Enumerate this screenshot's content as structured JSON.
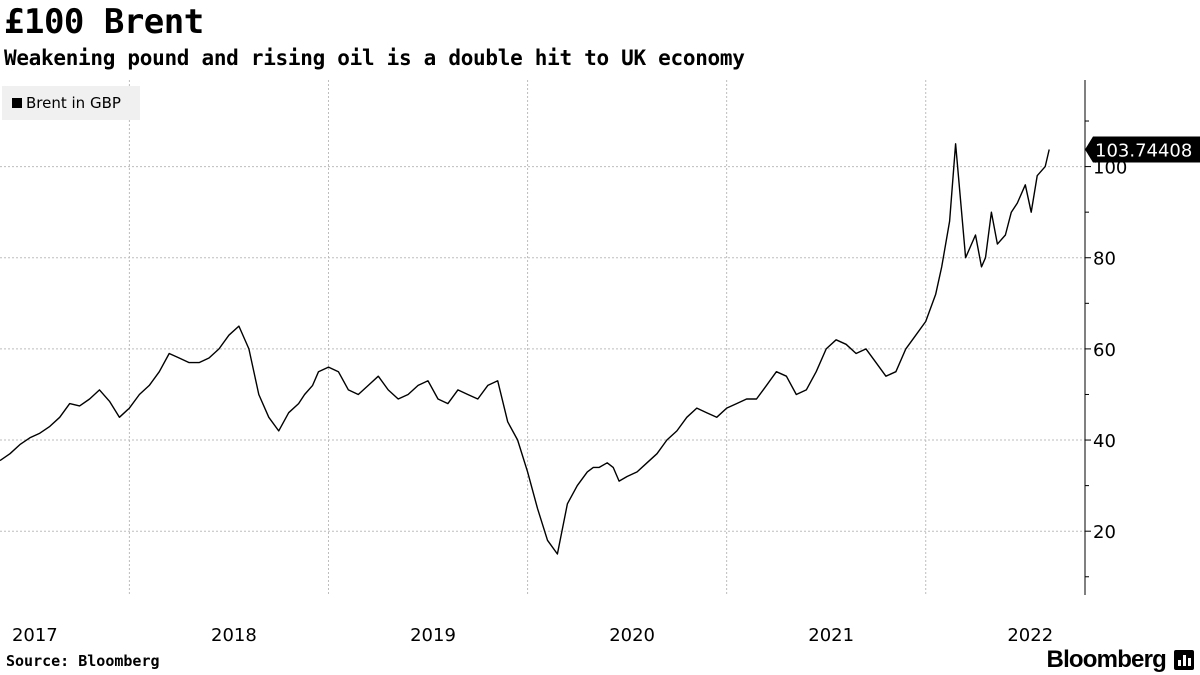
{
  "title": "£100 Brent",
  "subtitle": "Weakening pound and rising oil is a double hit to UK economy",
  "source": "Source: Bloomberg",
  "brand": "Bloomberg",
  "colors": {
    "line": "#000000",
    "grid": "#bdbdbd",
    "legend_bg": "#f0f0f0",
    "badge": "#000000"
  },
  "chart_data": {
    "type": "line",
    "title": "£100 Brent",
    "xlabel": "",
    "ylabel": "",
    "ylim": [
      6,
      119
    ],
    "xlim": [
      2016.85,
      2022.3
    ],
    "grid": true,
    "legend_position": "top-left",
    "y_ticks": [
      20,
      40,
      60,
      80,
      100
    ],
    "x_ticks": [
      {
        "label": "2017",
        "value": 2017.0
      },
      {
        "label": "2018",
        "value": 2018.0
      },
      {
        "label": "2019",
        "value": 2019.0
      },
      {
        "label": "2020",
        "value": 2020.0
      },
      {
        "label": "2021",
        "value": 2021.0
      },
      {
        "label": "2022",
        "value": 2022.0
      }
    ],
    "last_value_label": "103.74408",
    "series": [
      {
        "name": "Brent in GBP",
        "x": [
          2016.85,
          2016.9,
          2016.95,
          2017.0,
          2017.05,
          2017.1,
          2017.15,
          2017.2,
          2017.25,
          2017.3,
          2017.35,
          2017.4,
          2017.45,
          2017.5,
          2017.55,
          2017.6,
          2017.65,
          2017.7,
          2017.75,
          2017.8,
          2017.85,
          2017.9,
          2017.95,
          2018.0,
          2018.05,
          2018.1,
          2018.15,
          2018.2,
          2018.25,
          2018.3,
          2018.35,
          2018.38,
          2018.42,
          2018.45,
          2018.5,
          2018.55,
          2018.6,
          2018.65,
          2018.7,
          2018.75,
          2018.8,
          2018.85,
          2018.9,
          2018.95,
          2019.0,
          2019.05,
          2019.1,
          2019.15,
          2019.2,
          2019.25,
          2019.3,
          2019.35,
          2019.4,
          2019.45,
          2019.5,
          2019.55,
          2019.6,
          2019.65,
          2019.7,
          2019.75,
          2019.8,
          2019.83,
          2019.86,
          2019.9,
          2019.93,
          2019.96,
          2020.0,
          2020.05,
          2020.1,
          2020.15,
          2020.2,
          2020.25,
          2020.3,
          2020.35,
          2020.4,
          2020.45,
          2020.5,
          2020.55,
          2020.6,
          2020.65,
          2020.7,
          2020.75,
          2020.8,
          2020.85,
          2020.9,
          2020.95,
          2021.0,
          2021.05,
          2021.1,
          2021.15,
          2021.2,
          2021.25,
          2021.3,
          2021.35,
          2021.4,
          2021.45,
          2021.5,
          2021.55,
          2021.58,
          2021.62,
          2021.65,
          2021.7,
          2021.75,
          2021.78,
          2021.8,
          2021.83,
          2021.86,
          2021.9,
          2021.93,
          2021.96,
          2022.0,
          2022.03,
          2022.06,
          2022.1,
          2022.12
        ],
        "values": [
          35.5,
          37,
          39,
          40.5,
          41.5,
          43,
          45,
          48,
          47.5,
          49,
          51,
          48.5,
          45,
          47,
          50,
          52,
          55,
          59,
          58,
          57,
          57,
          58,
          60,
          63,
          65,
          60,
          50,
          45,
          42,
          46,
          48,
          50,
          52,
          55,
          56,
          55,
          51,
          50,
          52,
          54,
          51,
          49,
          50,
          52,
          53,
          49,
          48,
          51,
          50,
          49,
          52,
          53,
          44,
          40,
          33,
          25,
          18,
          15,
          26,
          30,
          33,
          34,
          34,
          35,
          34,
          31,
          32,
          33,
          35,
          37,
          40,
          42,
          45,
          47,
          46,
          45,
          47,
          48,
          49,
          49,
          52,
          55,
          54,
          50,
          51,
          55,
          60,
          62,
          61,
          59,
          60,
          57,
          54,
          55,
          60,
          63,
          66,
          72,
          78,
          88,
          105,
          80,
          85,
          78,
          80,
          90,
          83,
          85,
          90,
          92,
          96,
          90,
          98,
          100,
          103.74
        ]
      }
    ]
  }
}
